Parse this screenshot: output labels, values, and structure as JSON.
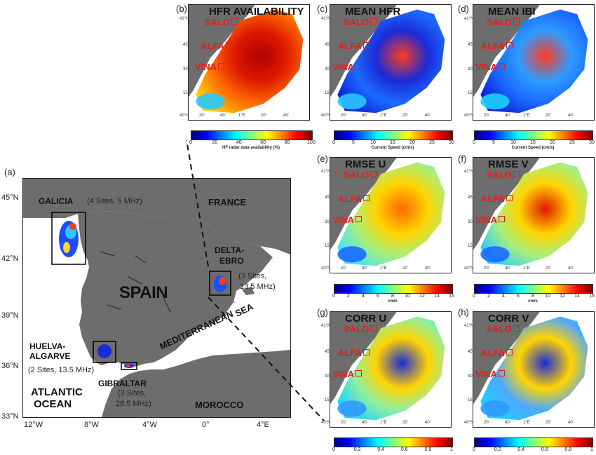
{
  "panel_a": {
    "letter": "(a)",
    "lat_ticks": [
      "45°N",
      "42°N",
      "39°N",
      "36°N",
      "33°N"
    ],
    "lon_ticks": [
      "12°W",
      "8°W",
      "4°W",
      "0°",
      "4°E"
    ],
    "regions": {
      "galicia_name": "GALICIA",
      "galicia_info": "(4 Sites, 5 MHz)",
      "france": "FRANCE",
      "spain": "SPAIN",
      "delta_1": "DELTA-",
      "delta_2": "EBRO",
      "delta_info_1": "(3 Sites,",
      "delta_info_2": "13.5 MHz)",
      "huelva_1": "HUELVA-",
      "huelva_2": "ALGARVE",
      "huelva_info": "(2 Sites, 13.5 MHz)",
      "gibraltar": "GIBRALTAR",
      "gib_info_1": "(3 Sites,",
      "gib_info_2": "26.5 MHz)",
      "med_sea_1": "MEDITERRANEAN",
      "med_sea_2": "SEA",
      "atlantic_1": "ATLANTIC",
      "atlantic_2": "OCEAN",
      "morocco": "MOROCCO"
    }
  },
  "sites": {
    "salo": "SALO",
    "alfa": "ALFA",
    "vina": "VINA"
  },
  "map_ticks": {
    "lat_41": "41°N",
    "lat_45": "45'",
    "lat_30": "30'",
    "lat_15": "15'",
    "lat_40": "40°N",
    "lon_1e": "1°E",
    "lon_20": "20'",
    "lon_40": "40'"
  },
  "panels": [
    {
      "letter": "(b)",
      "title": "HFR AVAILABILITY",
      "cbar_ticks": [
        "0",
        "20",
        "40",
        "60",
        "80",
        "100"
      ],
      "cbar_label": "HF radar data availability (%)"
    },
    {
      "letter": "(c)",
      "title": "MEAN HFR",
      "cbar_ticks": [
        "0",
        "5",
        "10",
        "15",
        "20",
        "25",
        "30"
      ],
      "cbar_label": "Current Speed (cm/s)"
    },
    {
      "letter": "(d)",
      "title": "MEAN IBI",
      "cbar_ticks": [
        "0",
        "5",
        "10",
        "15",
        "20",
        "25",
        "30"
      ],
      "cbar_label": "Current Speed (cm/s)"
    },
    {
      "letter": "(e)",
      "title": "RMSE U",
      "cbar_ticks": [
        "0",
        "2",
        "4",
        "6",
        "8",
        "10",
        "12",
        "14",
        "16"
      ],
      "cbar_label": "cm/s"
    },
    {
      "letter": "(f)",
      "title": "RMSE V",
      "cbar_ticks": [
        "0",
        "2",
        "4",
        "6",
        "8",
        "10",
        "12",
        "14",
        "16"
      ],
      "cbar_label": "cm/s"
    },
    {
      "letter": "(g)",
      "title": "CORR U",
      "cbar_ticks": [
        "0",
        "0.2",
        "0.4",
        "0.6",
        "0.8",
        "1"
      ],
      "cbar_label": ""
    },
    {
      "letter": "(h)",
      "title": "CORR V",
      "cbar_ticks": [
        "0",
        "0.2",
        "0.4",
        "0.6",
        "0.8",
        "1"
      ],
      "cbar_label": ""
    }
  ],
  "colors": {
    "land": "#6d6d6d",
    "site_red": "#e0201e"
  }
}
